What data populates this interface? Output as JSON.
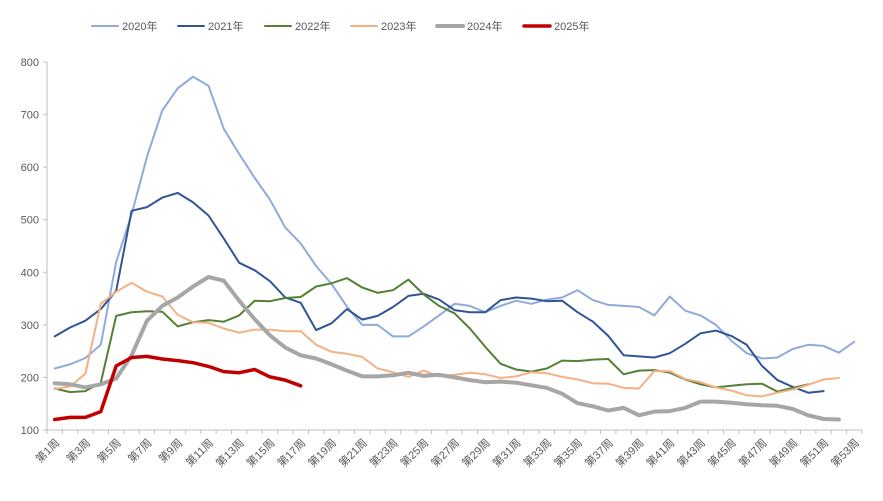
{
  "chart_data": {
    "type": "line",
    "title": "",
    "xlabel": "",
    "ylabel": "",
    "ylim": [
      100,
      800
    ],
    "yticks": [
      100,
      200,
      300,
      400,
      500,
      600,
      700,
      800
    ],
    "grid": false,
    "legend_position": "top",
    "categories": [
      "第1周",
      "第2周",
      "第3周",
      "第4周",
      "第5周",
      "第6周",
      "第7周",
      "第8周",
      "第9周",
      "第10周",
      "第11周",
      "第12周",
      "第13周",
      "第14周",
      "第15周",
      "第16周",
      "第17周",
      "第18周",
      "第19周",
      "第20周",
      "第21周",
      "第22周",
      "第23周",
      "第24周",
      "第25周",
      "第26周",
      "第27周",
      "第28周",
      "第29周",
      "第30周",
      "第31周",
      "第32周",
      "第33周",
      "第34周",
      "第35周",
      "第36周",
      "第37周",
      "第38周",
      "第39周",
      "第40周",
      "第41周",
      "第42周",
      "第43周",
      "第44周",
      "第45周",
      "第46周",
      "第47周",
      "第48周",
      "第49周",
      "第50周",
      "第51周",
      "第52周",
      "第53周"
    ],
    "xtick_labels": [
      "第1周",
      "第3周",
      "第5周",
      "第7周",
      "第9周",
      "第11周",
      "第13周",
      "第15周",
      "第17周",
      "第19周",
      "第21周",
      "第23周",
      "第25周",
      "第27周",
      "第29周",
      "第31周",
      "第33周",
      "第35周",
      "第37周",
      "第39周",
      "第41周",
      "第43周",
      "第45周",
      "第47周",
      "第49周",
      "第51周",
      "第53周"
    ],
    "series": [
      {
        "name": "2020年",
        "color": "#8faadc",
        "width": 2,
        "values": [
          217,
          225,
          237,
          262,
          420,
          510,
          620,
          708,
          750,
          772,
          755,
          673,
          625,
          580,
          538,
          485,
          455,
          412,
          378,
          335,
          300,
          300,
          278,
          278,
          297,
          318,
          340,
          336,
          324,
          336,
          346,
          340,
          348,
          352,
          366,
          347,
          338,
          336,
          334,
          318,
          354,
          327,
          318,
          300,
          270,
          246,
          236,
          238,
          254,
          262,
          260,
          247,
          268
        ]
      },
      {
        "name": "2021年",
        "color": "#2f5597",
        "width": 2,
        "values": [
          278,
          295,
          308,
          330,
          365,
          517,
          524,
          542,
          551,
          533,
          508,
          464,
          418,
          404,
          383,
          352,
          342,
          290,
          303,
          330,
          310,
          317,
          334,
          355,
          359,
          348,
          328,
          324,
          324,
          347,
          352,
          350,
          345,
          346,
          324,
          306,
          279,
          242,
          240,
          238,
          246,
          264,
          284,
          289,
          279,
          262,
          222,
          195,
          182,
          171,
          174,
          null,
          null
        ]
      },
      {
        "name": "2022年",
        "color": "#548235",
        "width": 2,
        "values": [
          179,
          172,
          174,
          190,
          317,
          324,
          326,
          325,
          297,
          305,
          309,
          306,
          318,
          346,
          345,
          351,
          353,
          373,
          379,
          389,
          371,
          361,
          366,
          386,
          358,
          336,
          322,
          293,
          258,
          226,
          215,
          211,
          217,
          232,
          231,
          234,
          235,
          206,
          213,
          214,
          209,
          196,
          187,
          181,
          184,
          187,
          188,
          173,
          180,
          187,
          null,
          null,
          null
        ]
      },
      {
        "name": "2023年",
        "color": "#f4b183",
        "width": 2,
        "values": [
          178,
          183,
          207,
          340,
          363,
          380,
          363,
          354,
          319,
          305,
          304,
          293,
          285,
          291,
          291,
          288,
          288,
          262,
          249,
          245,
          239,
          217,
          210,
          201,
          213,
          202,
          205,
          209,
          206,
          199,
          202,
          210,
          208,
          201,
          196,
          189,
          188,
          180,
          179,
          212,
          212,
          197,
          191,
          181,
          175,
          166,
          164,
          171,
          177,
          186,
          196,
          199,
          null
        ]
      },
      {
        "name": "2024年",
        "color": "#a6a6a6",
        "width": 4,
        "values": [
          189,
          187,
          181,
          187,
          198,
          242,
          308,
          336,
          352,
          373,
          391,
          384,
          346,
          311,
          280,
          257,
          242,
          236,
          225,
          213,
          202,
          202,
          204,
          209,
          203,
          205,
          200,
          195,
          191,
          192,
          190,
          185,
          180,
          169,
          151,
          145,
          137,
          142,
          128,
          135,
          136,
          142,
          154,
          154,
          152,
          149,
          147,
          146,
          140,
          128,
          121,
          120,
          null
        ]
      },
      {
        "name": "2025年",
        "color": "#c00000",
        "width": 3.5,
        "values": [
          120,
          124,
          124,
          135,
          222,
          238,
          240,
          235,
          232,
          228,
          221,
          211,
          209,
          215,
          201,
          195,
          184,
          null,
          null,
          null,
          null,
          null,
          null,
          null,
          null,
          null,
          null,
          null,
          null,
          null,
          null,
          null,
          null,
          null,
          null,
          null,
          null,
          null,
          null,
          null,
          null,
          null,
          null,
          null,
          null,
          null,
          null,
          null,
          null,
          null,
          null,
          null,
          null
        ]
      }
    ]
  }
}
